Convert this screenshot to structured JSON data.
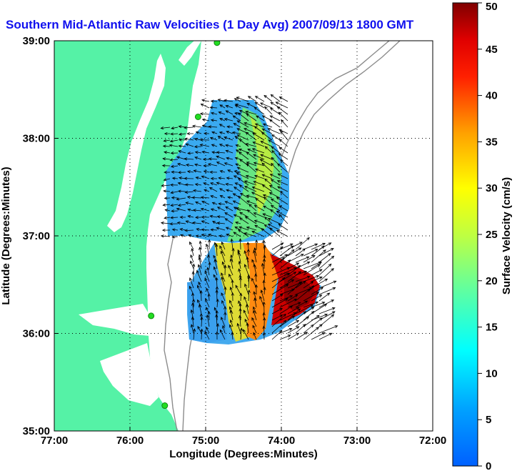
{
  "chart_data": {
    "type": "heatmap",
    "title": "Southern Mid-Atlantic Raw Velocities (1 Day Avg) 2007/09/13 1800 GMT",
    "xlabel": "Longitude (Degrees:Minutes)",
    "ylabel": "Latitude (Degrees:Minutes)",
    "colorbar_label": "Surface Velocity (cm/s)",
    "x_ticks": [
      "77:00",
      "76:00",
      "75:00",
      "74:00",
      "73:00",
      "72:00"
    ],
    "x_tick_values": [
      -77,
      -76,
      -75,
      -74,
      -73,
      -72
    ],
    "y_ticks": [
      "39:00",
      "38:00",
      "37:00",
      "36:00",
      "35:00"
    ],
    "y_tick_values": [
      39,
      38,
      37,
      36,
      35
    ],
    "xlim": [
      -77,
      -72
    ],
    "ylim": [
      35,
      39
    ],
    "colorbar_ticks": [
      "50",
      "45",
      "40",
      "35",
      "30",
      "25",
      "20",
      "15",
      "10",
      "5",
      "0"
    ],
    "colorbar_values": [
      50,
      45,
      40,
      35,
      30,
      25,
      20,
      15,
      10,
      5,
      0
    ],
    "colorbar_range": [
      0,
      50
    ],
    "grid": true,
    "colormap": "jet",
    "colors": {
      "land": "#55f2a6",
      "title": "#1010ee",
      "contour": "#8c8c8c",
      "station": "#22dd22",
      "vector": "#000000"
    },
    "stations": [
      {
        "lon": -74.85,
        "lat": 38.98
      },
      {
        "lon": -75.1,
        "lat": 38.22
      },
      {
        "lon": -75.72,
        "lat": 36.18
      },
      {
        "lon": -75.54,
        "lat": 35.26
      }
    ]
  }
}
